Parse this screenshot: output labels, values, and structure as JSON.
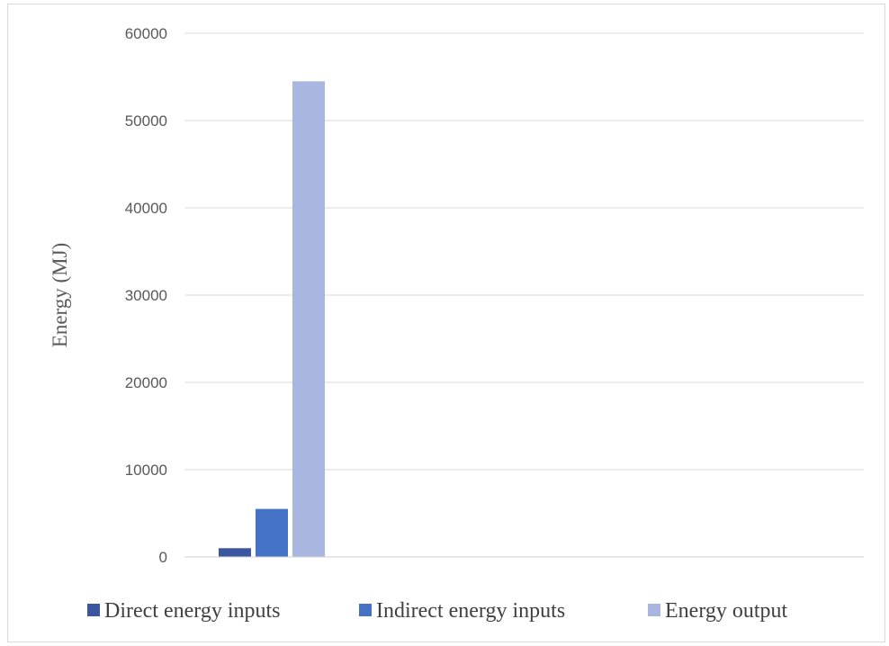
{
  "chart_data": {
    "type": "bar",
    "categories": [
      ""
    ],
    "series": [
      {
        "name": "Direct energy inputs",
        "values": [
          1000
        ],
        "color": "#3a56a0"
      },
      {
        "name": "Indirect energy inputs",
        "values": [
          5500
        ],
        "color": "#4472c4"
      },
      {
        "name": "Energy output",
        "values": [
          54500
        ],
        "color": "#a9b7e0"
      }
    ],
    "title": "",
    "xlabel": "",
    "ylabel": "Energy (MJ)",
    "ylim": [
      0,
      60000
    ],
    "yticks": [
      "0",
      "10000",
      "20000",
      "30000",
      "40000",
      "50000",
      "60000"
    ],
    "grid": true,
    "legend_position": "bottom"
  }
}
